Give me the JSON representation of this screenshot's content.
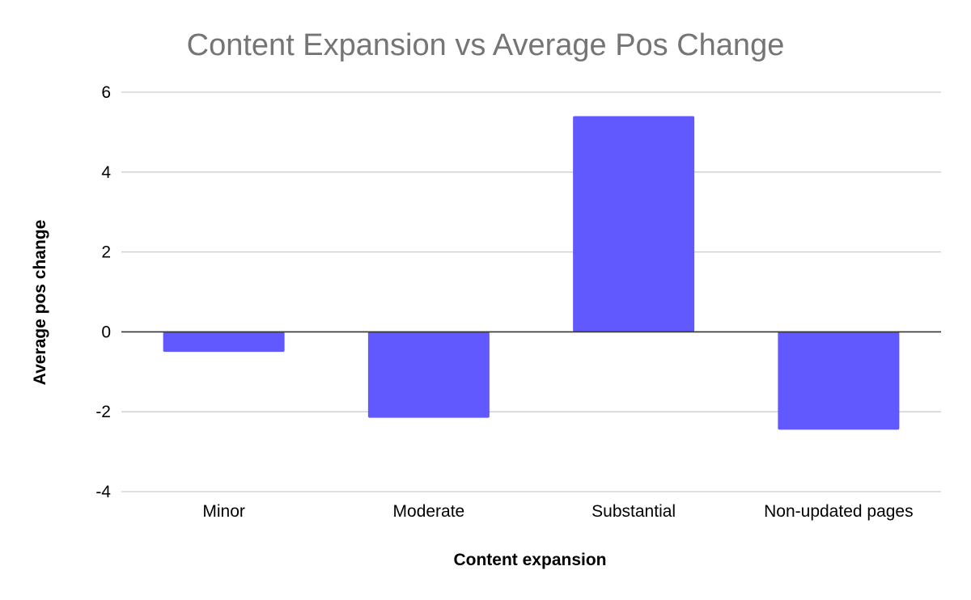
{
  "chart_data": {
    "type": "bar",
    "title": "Content Expansion vs Average Pos Change",
    "xlabel": "Content expansion",
    "ylabel": "Average pos change",
    "categories": [
      "Minor",
      "Moderate",
      "Substantial",
      "Non-updated pages"
    ],
    "values": [
      -0.5,
      -2.15,
      5.4,
      -2.45
    ],
    "ylim": [
      -4,
      6
    ],
    "yticks": [
      -4,
      -2,
      0,
      2,
      4,
      6
    ],
    "ytick_labels": [
      "-4",
      "-2",
      "0",
      "2",
      "4",
      "6"
    ],
    "grid": true,
    "legend": "none",
    "colors": {
      "bar": "#6159fd",
      "grid": "#cccccc",
      "zero_line": "#333333",
      "title": "#757575",
      "text": "#000000"
    }
  }
}
